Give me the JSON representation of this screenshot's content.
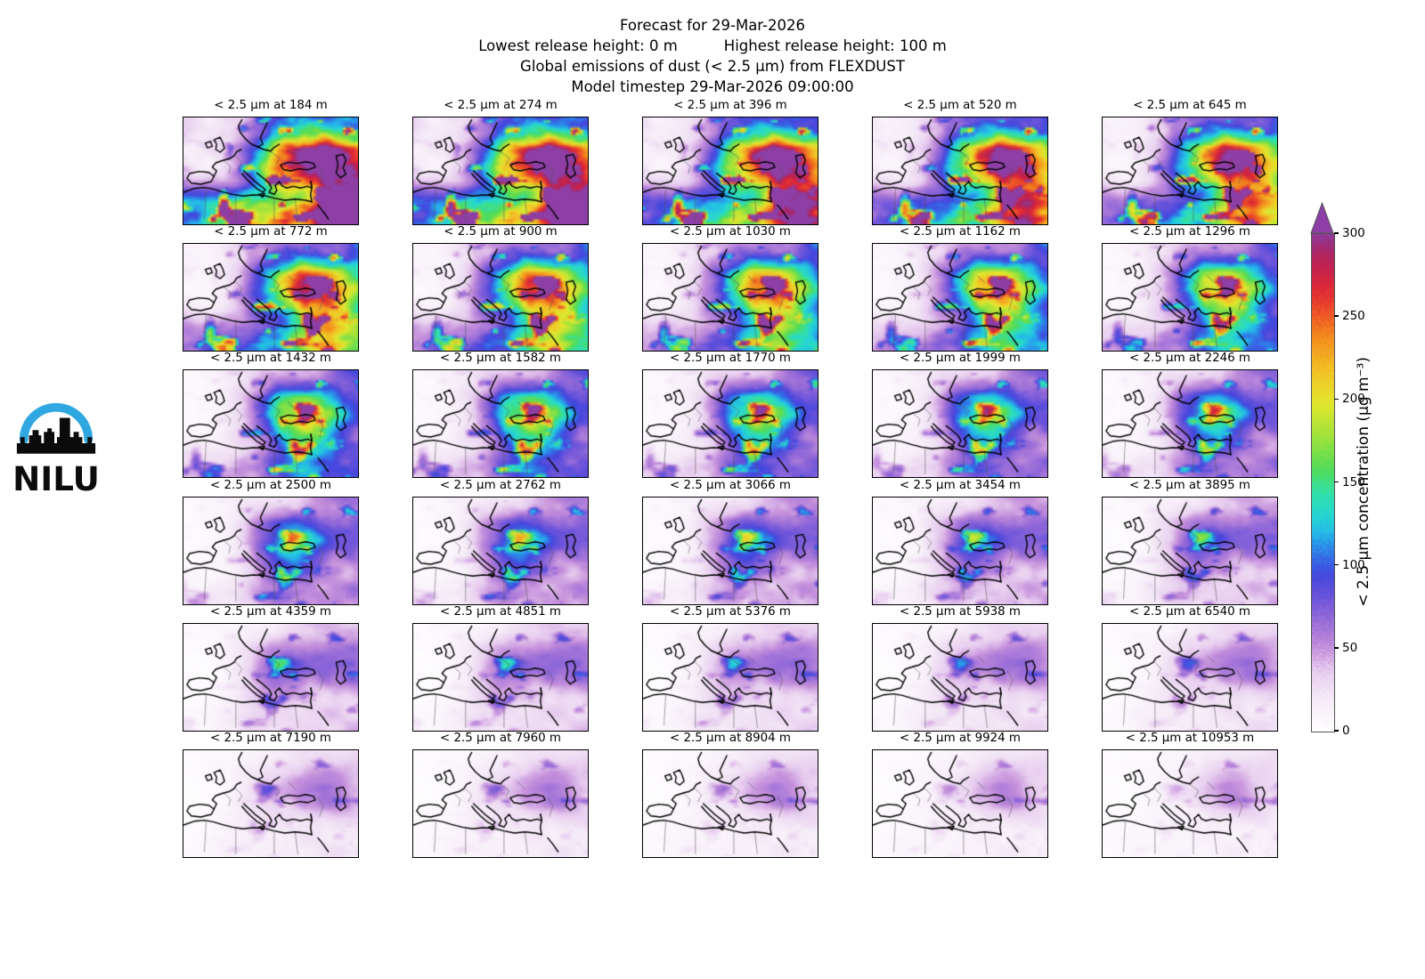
{
  "figure": {
    "title": "Forecast for 29-Mar-2026",
    "release_low": "Lowest release height: 0 m",
    "release_high": "Highest release height: 100 m",
    "emissions_line": "Global emissions of dust (< 2.5 μm) from FLEXDUST",
    "timestep_line": "Model timestep 29-Mar-2026 09:00:00"
  },
  "logo": {
    "text": "NILU",
    "arc_color": "#2FA8E1",
    "ink_color": "#0b0b0b"
  },
  "panels": {
    "rows": 6,
    "cols": 5,
    "title_prefix": "< 2.5 μm at ",
    "title_suffix": " m",
    "heights_m": [
      184,
      274,
      396,
      520,
      645,
      772,
      900,
      1030,
      1162,
      1296,
      1432,
      1582,
      1770,
      1999,
      2246,
      2500,
      2762,
      3066,
      3454,
      3895,
      4359,
      4851,
      5376,
      5938,
      6540,
      7190,
      7960,
      8904,
      9924,
      10953
    ]
  },
  "colorbar": {
    "label": "< 2.5 μm concentration (μg m⁻³)",
    "ticks": [
      0,
      50,
      100,
      150,
      200,
      250,
      300
    ],
    "vmin": 0,
    "vmax": 300,
    "extend": "max",
    "over_color": "#8d3fa5",
    "stops": [
      [
        0,
        "#ffffff"
      ],
      [
        18,
        "#f6ecf8"
      ],
      [
        35,
        "#e9d0f0"
      ],
      [
        50,
        "#c591dc"
      ],
      [
        65,
        "#9c6fd8"
      ],
      [
        80,
        "#6d55da"
      ],
      [
        95,
        "#4346dd"
      ],
      [
        108,
        "#2f7de8"
      ],
      [
        120,
        "#24bce8"
      ],
      [
        132,
        "#27d9cd"
      ],
      [
        145,
        "#35e0a4"
      ],
      [
        158,
        "#52dc58"
      ],
      [
        178,
        "#9fe33c"
      ],
      [
        198,
        "#e3e72e"
      ],
      [
        218,
        "#f2c226"
      ],
      [
        238,
        "#f28c1e"
      ],
      [
        252,
        "#ee5527"
      ],
      [
        266,
        "#e02a35"
      ],
      [
        281,
        "#c2224f"
      ],
      [
        293,
        "#a02a72"
      ],
      [
        300,
        "#8d3fa5"
      ]
    ]
  }
}
